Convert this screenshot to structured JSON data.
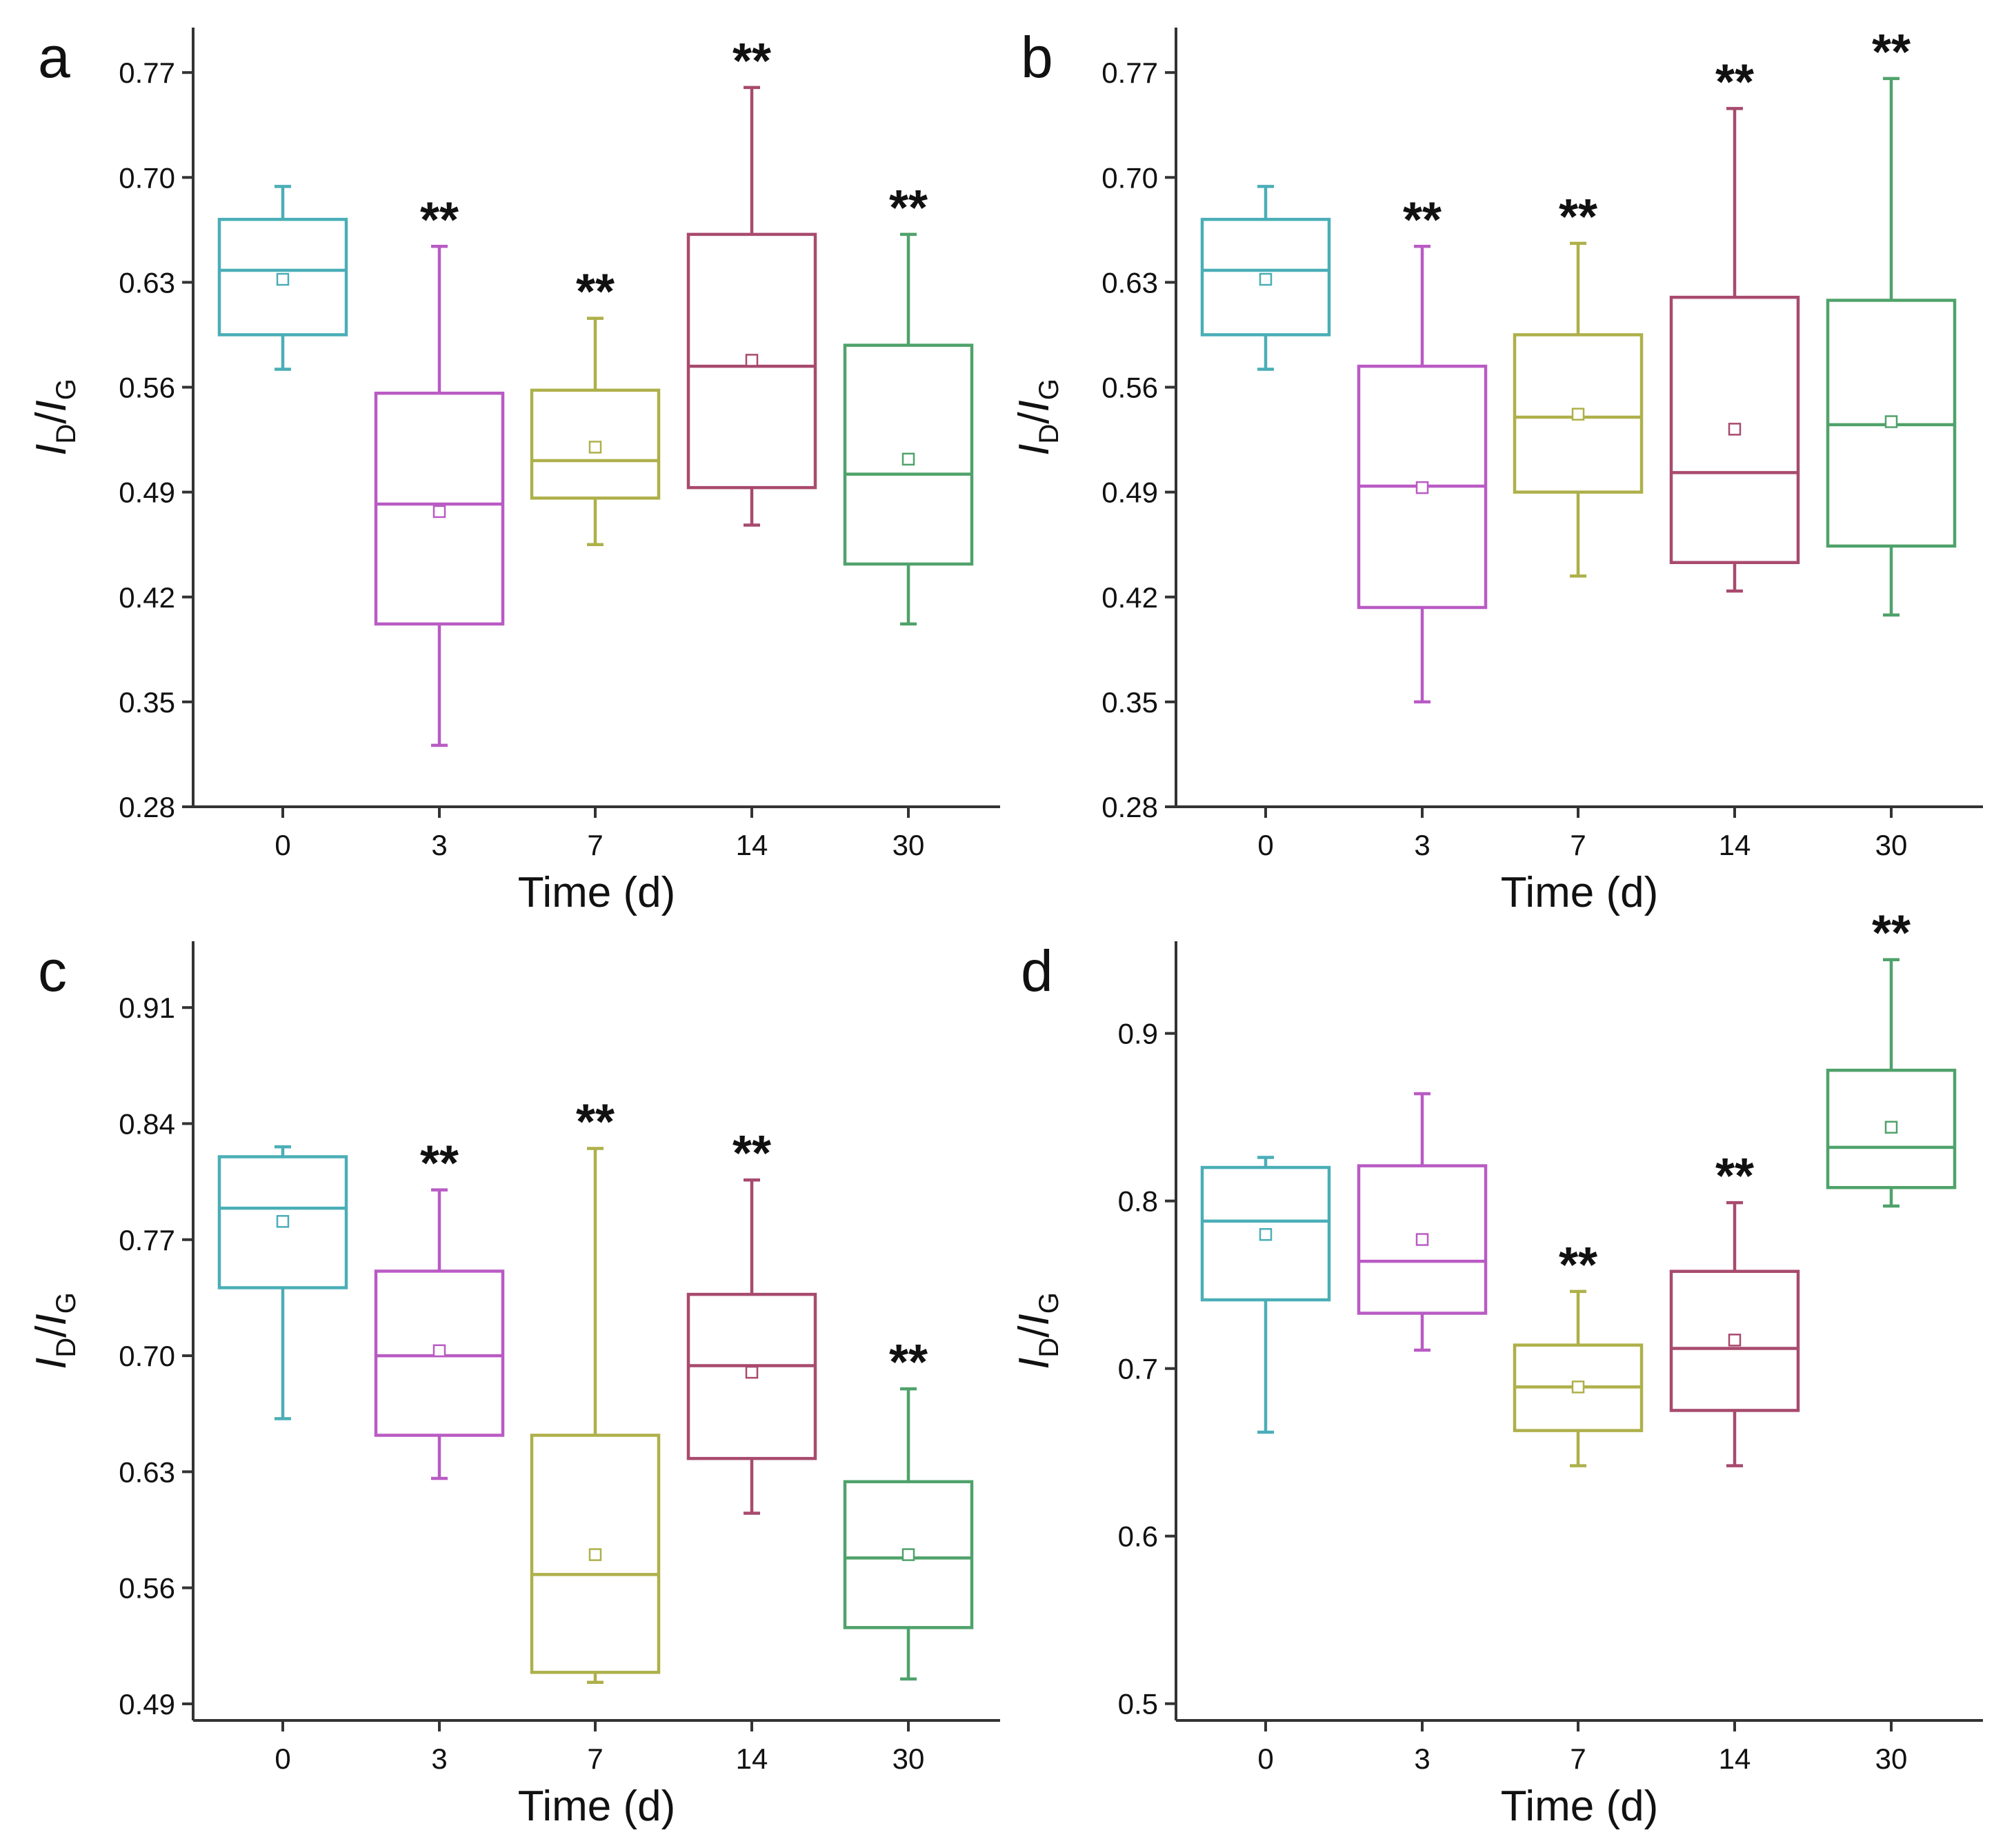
{
  "colors": {
    "0": "#4aaeb7",
    "3": "#b95bc4",
    "7": "#aeb04a",
    "14": "#a84a6e",
    "30": "#4fa26a",
    "axis": "#333333"
  },
  "chart_data": [
    {
      "panel": "a",
      "type": "box",
      "xlabel": "Time (d)",
      "ylabel_main": "I",
      "ylabel_sub1": "D",
      "ylabel_sep": "/",
      "ylabel_main2": "I",
      "ylabel_sub2": "G",
      "ylim": [
        0.28,
        0.8
      ],
      "yticks": [
        "0.28",
        "0.35",
        "0.42",
        "0.49",
        "0.56",
        "0.63",
        "0.70",
        "0.77"
      ],
      "categories": [
        "0",
        "3",
        "7",
        "14",
        "30"
      ],
      "boxes": [
        {
          "x": "0",
          "min": 0.572,
          "q1": 0.595,
          "median": 0.638,
          "q3": 0.672,
          "max": 0.694,
          "mean": 0.632,
          "sig": ""
        },
        {
          "x": "3",
          "min": 0.321,
          "q1": 0.402,
          "median": 0.482,
          "q3": 0.556,
          "max": 0.654,
          "mean": 0.477,
          "sig": "**"
        },
        {
          "x": "7",
          "min": 0.455,
          "q1": 0.486,
          "median": 0.511,
          "q3": 0.558,
          "max": 0.606,
          "mean": 0.52,
          "sig": "**"
        },
        {
          "x": "14",
          "min": 0.468,
          "q1": 0.493,
          "median": 0.574,
          "q3": 0.662,
          "max": 0.76,
          "mean": 0.578,
          "sig": "**"
        },
        {
          "x": "30",
          "min": 0.402,
          "q1": 0.442,
          "median": 0.502,
          "q3": 0.588,
          "max": 0.662,
          "mean": 0.512,
          "sig": "**"
        }
      ]
    },
    {
      "panel": "b",
      "type": "box",
      "xlabel": "Time (d)",
      "ylabel_main": "I",
      "ylabel_sub1": "D",
      "ylabel_sep": "/",
      "ylabel_main2": "I",
      "ylabel_sub2": "G",
      "ylim": [
        0.28,
        0.8
      ],
      "yticks": [
        "0.28",
        "0.35",
        "0.42",
        "0.49",
        "0.56",
        "0.63",
        "0.70",
        "0.77"
      ],
      "categories": [
        "0",
        "3",
        "7",
        "14",
        "30"
      ],
      "boxes": [
        {
          "x": "0",
          "min": 0.572,
          "q1": 0.595,
          "median": 0.638,
          "q3": 0.672,
          "max": 0.694,
          "mean": 0.632,
          "sig": ""
        },
        {
          "x": "3",
          "min": 0.35,
          "q1": 0.413,
          "median": 0.494,
          "q3": 0.574,
          "max": 0.654,
          "mean": 0.493,
          "sig": "**"
        },
        {
          "x": "7",
          "min": 0.434,
          "q1": 0.49,
          "median": 0.54,
          "q3": 0.595,
          "max": 0.656,
          "mean": 0.542,
          "sig": "**"
        },
        {
          "x": "14",
          "min": 0.424,
          "q1": 0.443,
          "median": 0.503,
          "q3": 0.62,
          "max": 0.746,
          "mean": 0.532,
          "sig": "**"
        },
        {
          "x": "30",
          "min": 0.408,
          "q1": 0.454,
          "median": 0.535,
          "q3": 0.618,
          "max": 0.766,
          "mean": 0.537,
          "sig": "**"
        }
      ]
    },
    {
      "panel": "c",
      "type": "box",
      "xlabel": "Time (d)",
      "ylabel_main": "I",
      "ylabel_sub1": "D",
      "ylabel_sep": "/",
      "ylabel_main2": "I",
      "ylabel_sub2": "G",
      "ylim": [
        0.48,
        0.95
      ],
      "yticks": [
        "0.49",
        "0.56",
        "0.63",
        "0.70",
        "0.77",
        "0.84",
        "0.91"
      ],
      "categories": [
        "0",
        "3",
        "7",
        "14",
        "30"
      ],
      "boxes": [
        {
          "x": "0",
          "min": 0.662,
          "q1": 0.741,
          "median": 0.789,
          "q3": 0.82,
          "max": 0.826,
          "mean": 0.781,
          "sig": ""
        },
        {
          "x": "3",
          "min": 0.626,
          "q1": 0.652,
          "median": 0.7,
          "q3": 0.751,
          "max": 0.8,
          "mean": 0.703,
          "sig": "**"
        },
        {
          "x": "7",
          "min": 0.503,
          "q1": 0.509,
          "median": 0.568,
          "q3": 0.652,
          "max": 0.825,
          "mean": 0.58,
          "sig": "**"
        },
        {
          "x": "14",
          "min": 0.605,
          "q1": 0.638,
          "median": 0.694,
          "q3": 0.737,
          "max": 0.806,
          "mean": 0.69,
          "sig": "**"
        },
        {
          "x": "30",
          "min": 0.505,
          "q1": 0.536,
          "median": 0.578,
          "q3": 0.624,
          "max": 0.68,
          "mean": 0.58,
          "sig": "**"
        }
      ]
    },
    {
      "panel": "d",
      "type": "box",
      "xlabel": "Time (d)",
      "ylabel_main": "I",
      "ylabel_sub1": "D",
      "ylabel_sep": "/",
      "ylabel_main2": "I",
      "ylabel_sub2": "G",
      "ylim": [
        0.49,
        0.955
      ],
      "yticks": [
        "0.5",
        "0.6",
        "0.7",
        "0.8",
        "0.9"
      ],
      "categories": [
        "0",
        "3",
        "7",
        "14",
        "30"
      ],
      "boxes": [
        {
          "x": "0",
          "min": 0.662,
          "q1": 0.741,
          "median": 0.788,
          "q3": 0.82,
          "max": 0.826,
          "mean": 0.78,
          "sig": ""
        },
        {
          "x": "3",
          "min": 0.711,
          "q1": 0.733,
          "median": 0.764,
          "q3": 0.821,
          "max": 0.864,
          "mean": 0.777,
          "sig": ""
        },
        {
          "x": "7",
          "min": 0.642,
          "q1": 0.663,
          "median": 0.689,
          "q3": 0.714,
          "max": 0.746,
          "mean": 0.689,
          "sig": "**"
        },
        {
          "x": "14",
          "min": 0.642,
          "q1": 0.675,
          "median": 0.712,
          "q3": 0.758,
          "max": 0.799,
          "mean": 0.717,
          "sig": "**"
        },
        {
          "x": "30",
          "min": 0.797,
          "q1": 0.808,
          "median": 0.832,
          "q3": 0.878,
          "max": 0.944,
          "mean": 0.844,
          "sig": "**"
        }
      ]
    }
  ]
}
